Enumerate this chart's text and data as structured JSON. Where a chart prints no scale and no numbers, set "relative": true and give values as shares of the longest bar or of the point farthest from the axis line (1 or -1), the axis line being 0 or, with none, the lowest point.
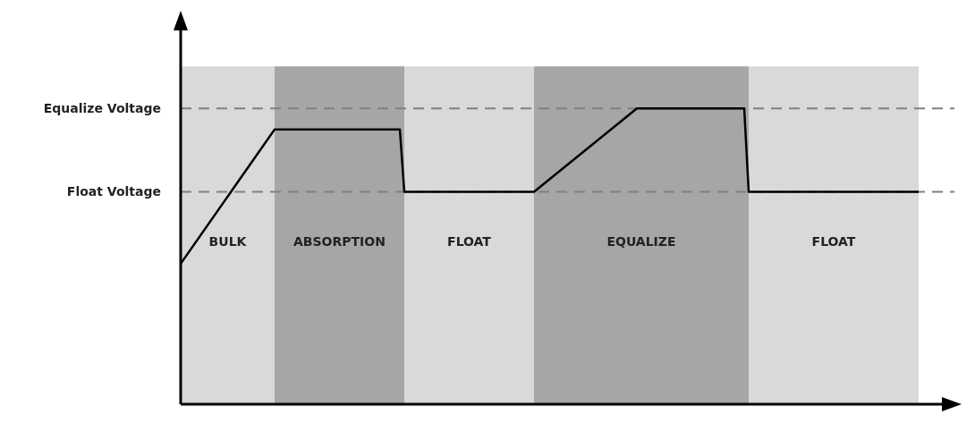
{
  "chart_data": {
    "type": "line",
    "relative": true,
    "categories": [
      null,
      null,
      null,
      null,
      null,
      null,
      null,
      null,
      null,
      null,
      null,
      null,
      null,
      null,
      null,
      null,
      null,
      null,
      null,
      null,
      null,
      null,
      null,
      null,
      null,
      null,
      null,
      null,
      null,
      null,
      null,
      null,
      null,
      null,
      null,
      null,
      null,
      null,
      null,
      null,
      null,
      null,
      null,
      null,
      null,
      null,
      null,
      null,
      null,
      null,
      null,
      null,
      null,
      null,
      null,
      null,
      null,
      null,
      null,
      null,
      null,
      null,
      null,
      null,
      null,
      null,
      null,
      null,
      null,
      null,
      null,
      null,
      null,
      null,
      null,
      null,
      null,
      null,
      null,
      null,
      null,
      null,
      null,
      null,
      null,
      null,
      null,
      null,
      null,
      null,
      null,
      null,
      null,
      null,
      null,
      null,
      null,
      null,
      null,
      null,
      null,
      null,
      null,
      null,
      null,
      null,
      null,
      null,
      null,
      null,
      null,
      null,
      null,
      null,
      null,
      null,
      null,
      null,
      null,
      null,
      null,
      null,
      null,
      null,
      null,
      null,
      null,
      null,
      null,
      null,
      null,
      null,
      null,
      null,
      null,
      null,
      null,
      null,
      null,
      null,
      null,
      null,
      null,
      null,
      null,
      null,
      null,
      null,
      null,
      null,
      null,
      null,
      null,
      null,
      null,
      null,
      null,
      null,
      null,
      null,
      null,
      null,
      null,
      null,
      null,
      null
    ],
    "series": [
      {
        "color": "#000000",
        "values": [
          0.475,
          null,
          null,
          null,
          null,
          null,
          null,
          null,
          null,
          null,
          null,
          null,
          null,
          null,
          null,
          null,
          null,
          null,
          null,
          null,
          null,
          0.929,
          null,
          null,
          null,
          null,
          null,
          null,
          null,
          null,
          null,
          null,
          null,
          null,
          null,
          null,
          null,
          null,
          null,
          null,
          null,
          null,
          null,
          null,
          null,
          null,
          null,
          null,
          null,
          0.929,
          0.718,
          null,
          null,
          null,
          null,
          null,
          null,
          null,
          null,
          null,
          null,
          null,
          null,
          null,
          null,
          null,
          null,
          null,
          null,
          null,
          null,
          null,
          null,
          null,
          null,
          null,
          null,
          null,
          null,
          0.718,
          null,
          null,
          null,
          null,
          null,
          null,
          null,
          null,
          null,
          null,
          null,
          null,
          null,
          null,
          null,
          null,
          null,
          null,
          null,
          null,
          null,
          null,
          1,
          null,
          null,
          null,
          null,
          null,
          null,
          null,
          null,
          null,
          null,
          null,
          null,
          null,
          null,
          null,
          null,
          null,
          null,
          null,
          null,
          null,
          null,
          null,
          1,
          0.718,
          null,
          null,
          null,
          null,
          null,
          null,
          null,
          null,
          null,
          null,
          null,
          null,
          null,
          null,
          null,
          null,
          null,
          null,
          null,
          null,
          null,
          null,
          null,
          null,
          null,
          null,
          null,
          null,
          null,
          null,
          null,
          null,
          null,
          null,
          null,
          null,
          null,
          0.718
        ]
      }
    ],
    "annotations": [
      "BULK",
      "ABSORPTION",
      "FLOAT",
      "EQUALIZE",
      "FLOAT"
    ],
    "ref_lines": [
      {
        "axis": "y",
        "value": 1,
        "label": "Equalize Voltage",
        "color": "#808080",
        "line_style": "dashed"
      },
      {
        "axis": "y",
        "value": 0.718,
        "label": "Float Voltage",
        "color": "#808080",
        "line_style": "dashed"
      }
    ],
    "grid": false,
    "legend": false,
    "marker": "none",
    "line_style": "solid"
  }
}
